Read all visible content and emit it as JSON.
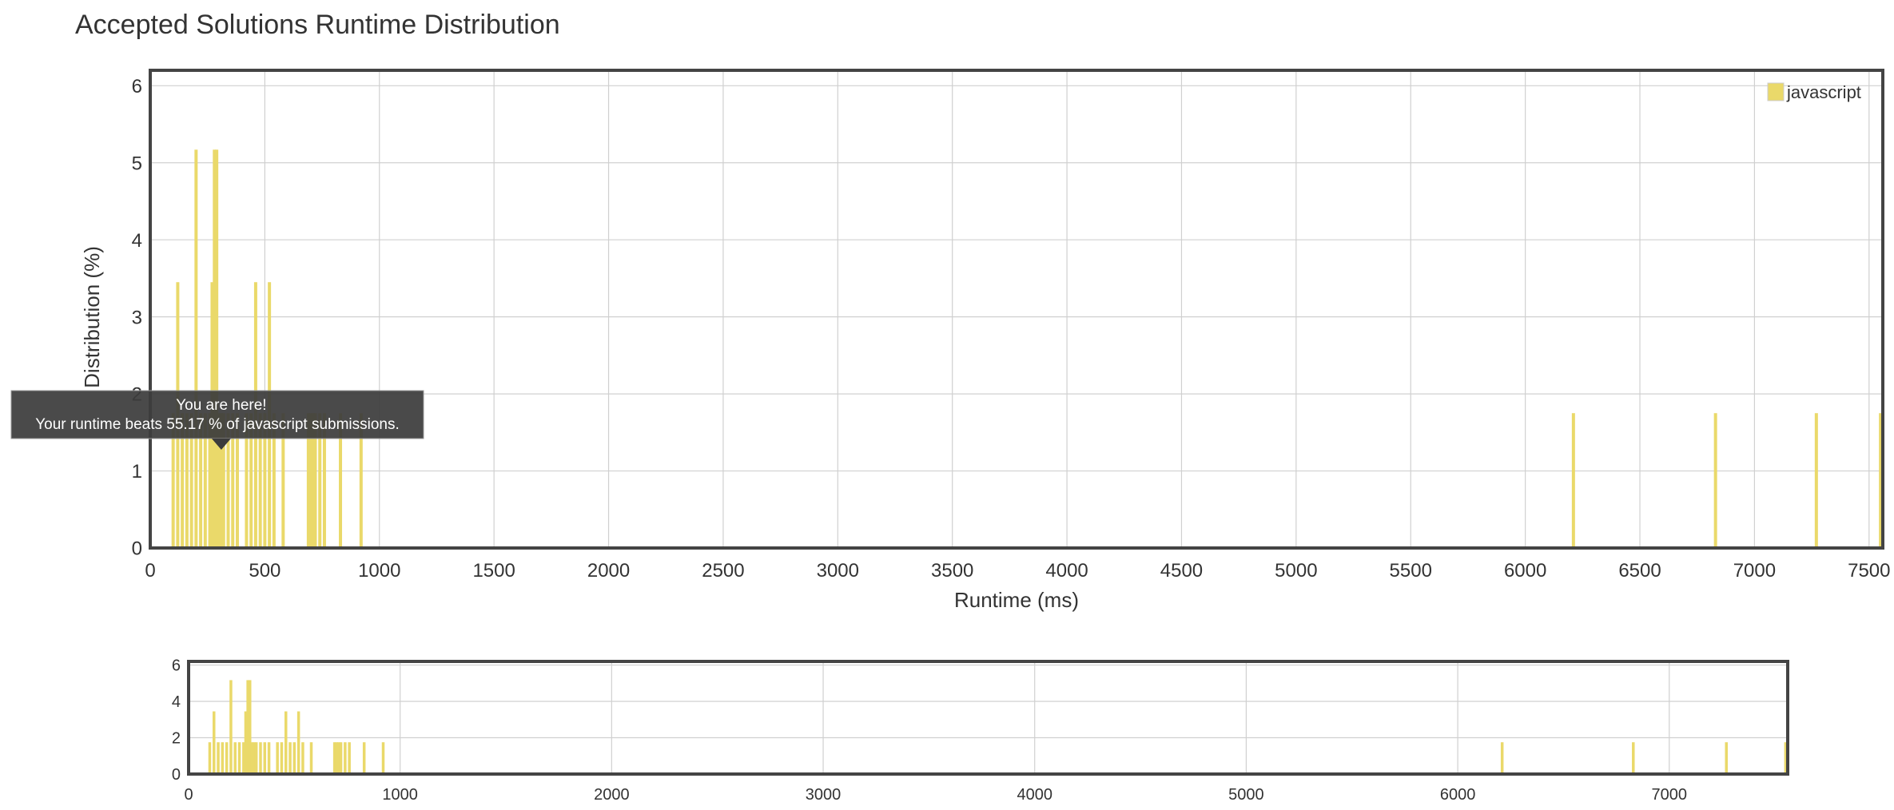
{
  "page": {
    "title": "Accepted Solutions Runtime Distribution"
  },
  "tooltip": {
    "line1": "You are here!",
    "line2": "Your runtime beats 55.17 % of javascript submissions."
  },
  "colors": {
    "bar": "#ead96a",
    "grid": "#d0d0d0",
    "frame": "#444444",
    "tooltip_bg": "#3c3c3c"
  },
  "chart_data": [
    {
      "type": "bar",
      "role": "main",
      "xlabel": "Runtime (ms)",
      "ylabel": "Distribution (%)",
      "xlim": [
        0,
        7560
      ],
      "ylim": [
        0,
        6.2
      ],
      "xticks": [
        0,
        500,
        1000,
        1500,
        2000,
        2500,
        3000,
        3500,
        4000,
        4500,
        5000,
        5500,
        6000,
        6500,
        7000,
        7500
      ],
      "yticks": [
        0,
        1,
        2,
        3,
        4,
        5,
        6
      ],
      "legend": {
        "position": "top-right",
        "entries": [
          "javascript"
        ]
      },
      "grid": true,
      "series": [
        {
          "name": "javascript",
          "x": [
            100,
            120,
            140,
            160,
            180,
            200,
            220,
            240,
            260,
            270,
            280,
            290,
            300,
            310,
            320,
            340,
            360,
            380,
            420,
            440,
            460,
            480,
            500,
            520,
            540,
            580,
            690,
            700,
            710,
            720,
            740,
            760,
            830,
            920,
            6210,
            6830,
            7270,
            7550
          ],
          "values": [
            1.75,
            3.45,
            1.75,
            1.75,
            1.75,
            5.17,
            1.75,
            1.75,
            1.75,
            3.45,
            5.17,
            5.17,
            1.75,
            1.75,
            1.75,
            1.75,
            1.75,
            1.75,
            1.75,
            1.75,
            3.45,
            1.75,
            1.75,
            3.45,
            1.75,
            1.75,
            1.75,
            1.75,
            1.75,
            1.75,
            1.75,
            1.75,
            1.75,
            1.75,
            1.75,
            1.75,
            1.75,
            1.75
          ]
        }
      ],
      "annotation": {
        "x": 310,
        "text_ref": "tooltip"
      }
    },
    {
      "type": "bar",
      "role": "navigator",
      "xlim": [
        0,
        7560
      ],
      "ylim": [
        0,
        6.2
      ],
      "xticks": [
        0,
        1000,
        2000,
        3000,
        4000,
        5000,
        6000,
        7000
      ],
      "yticks": [
        0,
        2,
        4,
        6
      ],
      "grid": true
    }
  ]
}
